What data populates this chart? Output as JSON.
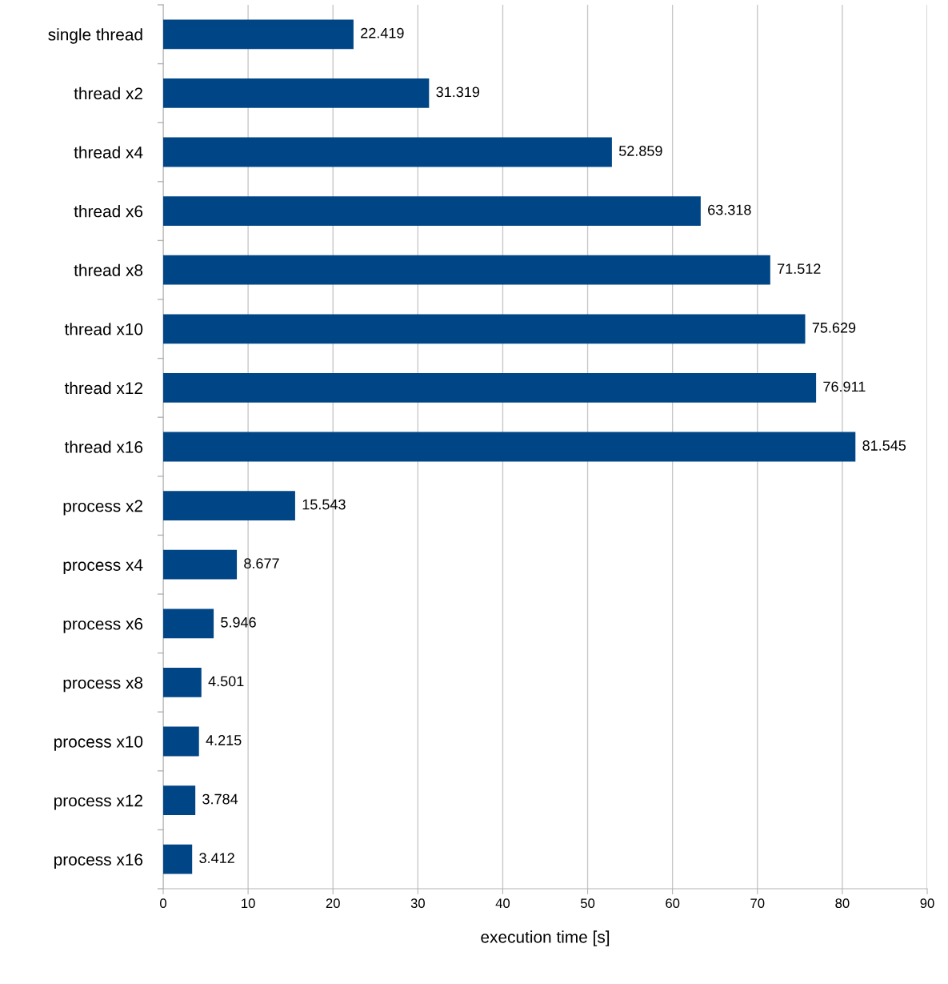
{
  "chart_data": {
    "type": "bar",
    "orientation": "horizontal",
    "xlabel": "execution time [s]",
    "categories": [
      "single thread",
      "thread x2",
      "thread x4",
      "thread x6",
      "thread x8",
      "thread x10",
      "thread x12",
      "thread x16",
      "process x2",
      "process x4",
      "process x6",
      "process x8",
      "process x10",
      "process x12",
      "process x16"
    ],
    "values": [
      22.419,
      31.319,
      52.859,
      63.318,
      71.512,
      75.629,
      76.911,
      81.545,
      15.543,
      8.677,
      5.946,
      4.501,
      4.215,
      3.784,
      3.412
    ],
    "color": "#004586",
    "data_labels": true,
    "grid": "x",
    "xlim": [
      0,
      90
    ],
    "xticks": [
      0,
      10,
      20,
      30,
      40,
      50,
      60,
      70,
      80,
      90
    ]
  }
}
